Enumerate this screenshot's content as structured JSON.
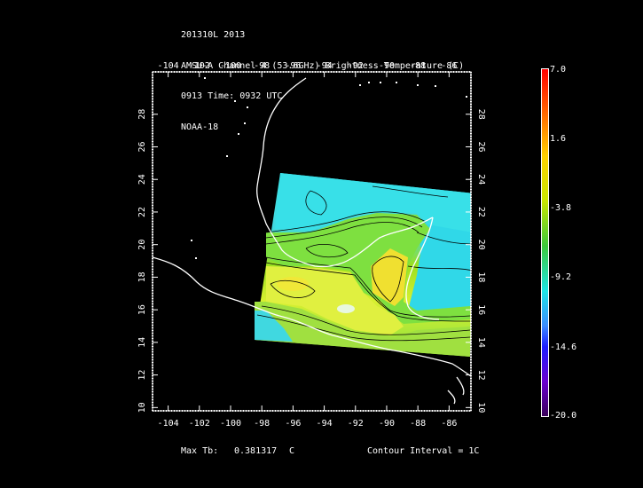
{
  "header": {
    "line1": "201310L 2013",
    "line2": "AMSU-A Channel 4 (53.6GHz) Brightness Temperature (C)",
    "line3": "0913 Time: 0932 UTC",
    "line4": "NOAA-18"
  },
  "map": {
    "lon_ticks": [
      "-104",
      "-102",
      "-100",
      "-98",
      "-96",
      "-94",
      "-92",
      "-90",
      "-88",
      "-86"
    ],
    "lat_ticks": [
      "28",
      "26",
      "24",
      "22",
      "20",
      "18",
      "16",
      "14",
      "12",
      "10"
    ],
    "lon_range": [
      -105.0,
      -84.6
    ],
    "lat_range": [
      9.8,
      30.6
    ],
    "coast_color": "#ffffff",
    "contour_color": "#000000"
  },
  "colorbar": {
    "labels": [
      "7.0",
      "1.6",
      "-3.8",
      "-9.2",
      "-14.6",
      "-20.0"
    ],
    "colors": [
      "#ff0000",
      "#ff6a00",
      "#ffd000",
      "#c8e600",
      "#3cc83c",
      "#1ee6e6",
      "#3c8cff",
      "#1e1eff",
      "#6a00d0",
      "#3a005a"
    ]
  },
  "footer": {
    "max_label": "Max Tb:",
    "max_value": "0.381317",
    "max_unit": "C",
    "contour_label": "Contour Interval = 1C"
  }
}
